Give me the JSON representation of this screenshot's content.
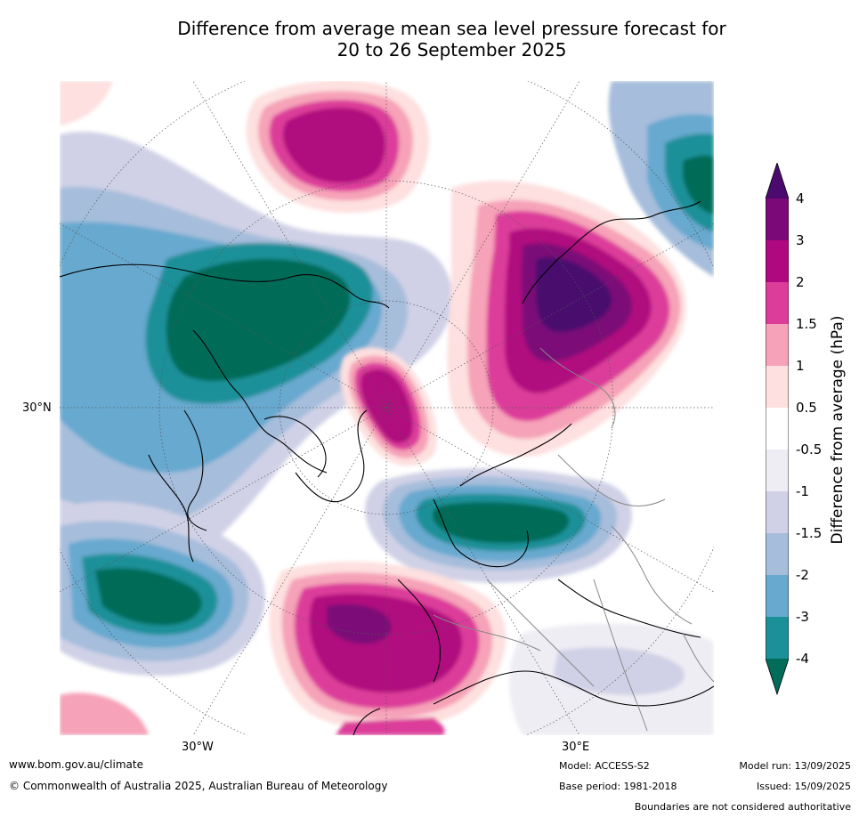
{
  "title_line1": "Difference from average mean sea level pressure forecast for",
  "title_line2": "20 to 26 September 2025",
  "map": {
    "lat_label": "30°N",
    "lon_label_west": "30°W",
    "lon_label_east": "30°E"
  },
  "colorbar": {
    "title": "Difference from average (hPa)",
    "ticks": [
      "4",
      "3",
      "2",
      "1.5",
      "1",
      "0.5",
      "-0.5",
      "-1",
      "-1.5",
      "-2",
      "-3",
      "-4"
    ],
    "colors": {
      "gt4": "#4a0a6e",
      "3to4": "#7b0a78",
      "2to3": "#b0087e",
      "1.5to2": "#dc3d9a",
      "1to1.5": "#f6a2b8",
      "0.5to1": "#fde0df",
      "neutral": "#ffffff",
      "-1to-0.5": "#efedf4",
      "-1.5to-1": "#d0d1e6",
      "-2to-1.5": "#a6bddb",
      "-3to-2": "#67a9cf",
      "-4to-3": "#1c9099",
      "lt-4": "#016c59"
    }
  },
  "footer": {
    "website": "www.bom.gov.au/climate",
    "copyright": "© Commonwealth of Australia 2025, Australian Bureau of Meteorology",
    "model": "Model: ACCESS-S2",
    "base_period": "Base period: 1981-2018",
    "model_run": "Model run: 13/09/2025",
    "issued": "Issued: 15/09/2025",
    "disclaimer": "Boundaries are not considered authoritative"
  }
}
